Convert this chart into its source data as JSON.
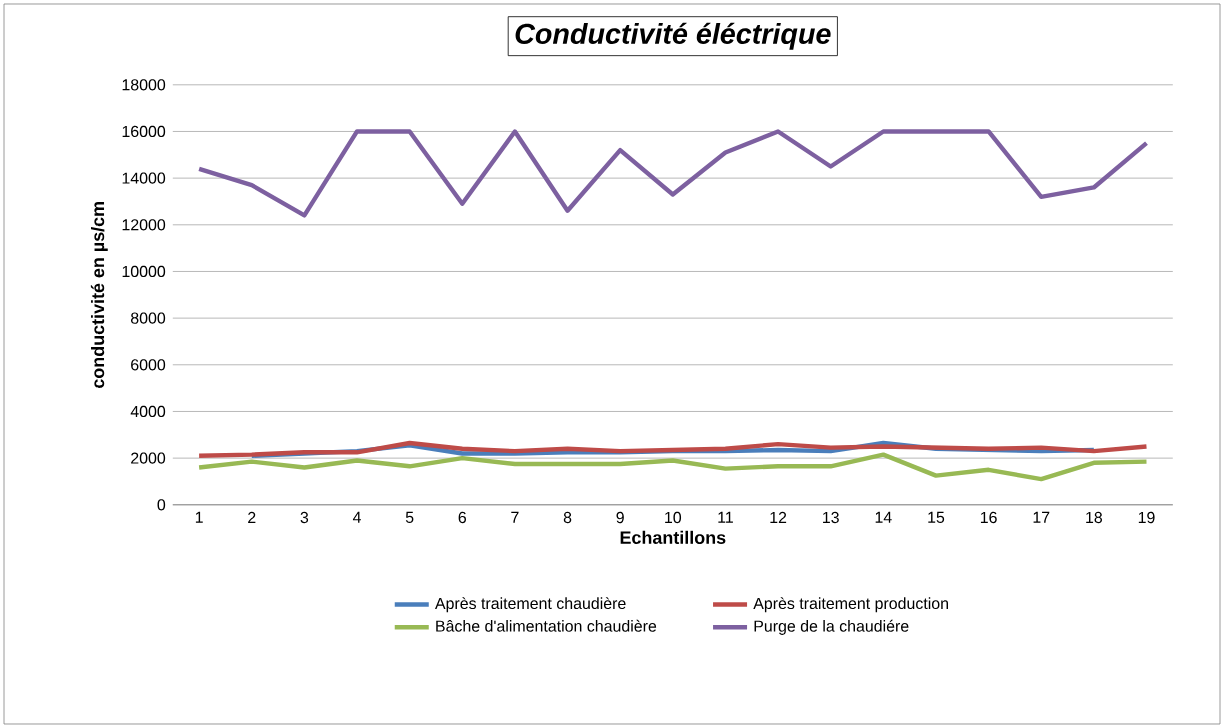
{
  "chart_data": {
    "type": "line",
    "title": "Conductivité éléctrique",
    "xlabel": "Echantillons",
    "ylabel": "conductivité en µs/cm",
    "categories": [
      "1",
      "2",
      "3",
      "4",
      "5",
      "6",
      "7",
      "8",
      "9",
      "10",
      "11",
      "12",
      "13",
      "14",
      "15",
      "16",
      "17",
      "18",
      "19"
    ],
    "series": [
      {
        "name": "Après traitement chaudière",
        "color": "#4a7ebb",
        "values": [
          null,
          2100,
          2200,
          2300,
          2550,
          2200,
          2200,
          2250,
          2250,
          2300,
          2300,
          2350,
          2300,
          2650,
          2400,
          null,
          2300,
          2350,
          null
        ]
      },
      {
        "name": "Après traitement production",
        "color": "#be4b48",
        "values": [
          2100,
          2150,
          2250,
          2250,
          2650,
          2400,
          2300,
          2400,
          2300,
          2350,
          2400,
          2600,
          2450,
          2500,
          2450,
          2400,
          2450,
          2300,
          2500
        ]
      },
      {
        "name": "Bâche d'alimentation chaudière",
        "color": "#98b954",
        "values": [
          1600,
          1850,
          1600,
          1900,
          1650,
          2000,
          1750,
          1750,
          1750,
          1900,
          1550,
          1650,
          1650,
          2150,
          1250,
          1500,
          1100,
          1800,
          1850
        ]
      },
      {
        "name": "Purge de la chaudiére",
        "color": "#7d60a0",
        "values": [
          14400,
          13700,
          12400,
          16000,
          16000,
          12900,
          16000,
          12600,
          15200,
          13300,
          15100,
          16000,
          14500,
          16000,
          16000,
          16000,
          13200,
          13600,
          15500
        ]
      }
    ],
    "ylim": [
      0,
      18000
    ],
    "yticks": [
      0,
      2000,
      4000,
      6000,
      8000,
      10000,
      12000,
      14000,
      16000,
      18000
    ],
    "grid": "y",
    "legend": "bottom",
    "marker": "none",
    "line_style": "solid"
  }
}
